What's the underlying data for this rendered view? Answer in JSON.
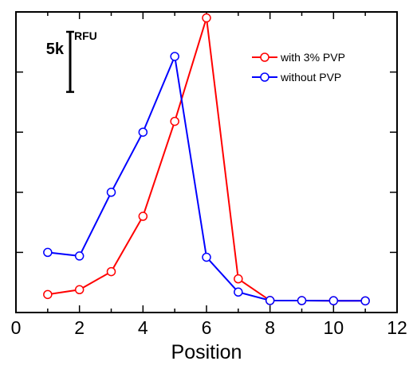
{
  "chart_data": {
    "type": "line",
    "xlabel": "Position",
    "ylabel": "",
    "xlim": [
      0,
      12
    ],
    "xticks": [
      0,
      2,
      4,
      6,
      8,
      10,
      12
    ],
    "xtick_labels": [
      "0",
      "2",
      "4",
      "6",
      "8",
      "10",
      "12"
    ],
    "ylim": [
      0,
      25
    ],
    "grid": false,
    "legend_position": "top-right",
    "scale_bar": {
      "value_label": "5k",
      "unit_label": "RFU",
      "length": 5
    },
    "series": [
      {
        "name": "with 3% PVP",
        "color": "#ff0000",
        "x": [
          1,
          2,
          3,
          4,
          5,
          6,
          7,
          8,
          9,
          10,
          11
        ],
        "y": [
          1.5,
          1.9,
          3.4,
          8.0,
          15.9,
          24.5,
          2.8,
          1.0,
          0.99,
          0.98,
          0.97
        ]
      },
      {
        "name": "without PVP",
        "color": "#0000ff",
        "x": [
          1,
          2,
          3,
          4,
          5,
          6,
          7,
          8,
          9,
          10,
          11
        ],
        "y": [
          5.0,
          4.7,
          10.0,
          15.0,
          21.3,
          4.6,
          1.7,
          1.0,
          0.99,
          0.98,
          0.97
        ]
      }
    ]
  }
}
